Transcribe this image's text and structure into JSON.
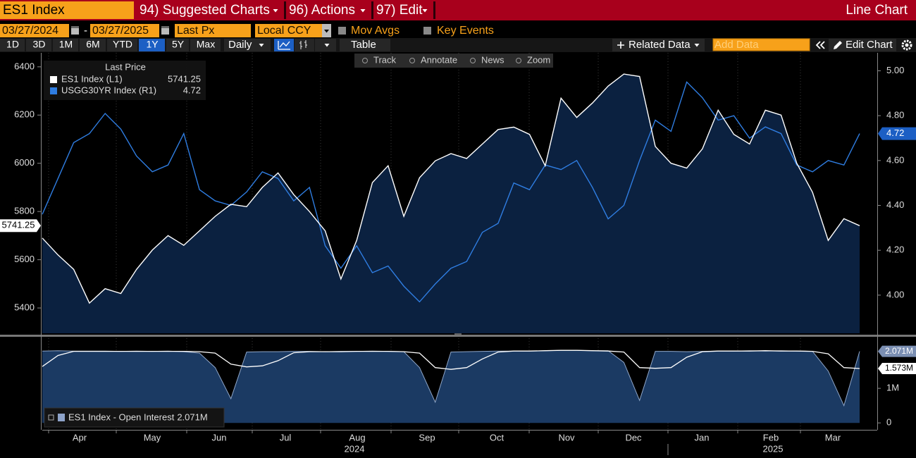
{
  "header": {
    "ticker": "ES1 Index",
    "menus": [
      "94) Suggested Charts",
      "96) Actions",
      "97) Edit"
    ],
    "view": "Line Chart"
  },
  "settings": {
    "start_date": "03/27/2024",
    "date_separator": "-",
    "end_date": "03/27/2025",
    "field": "Last Px",
    "currency": "Local CCY",
    "options": [
      "Mov Avgs",
      "Key Events"
    ]
  },
  "toolbar": {
    "periods": [
      {
        "label": "1D"
      },
      {
        "label": "3D"
      },
      {
        "label": "1M"
      },
      {
        "label": "6M"
      },
      {
        "label": "YTD"
      },
      {
        "label": "1Y",
        "active": true
      },
      {
        "label": "5Y"
      },
      {
        "label": "Max"
      }
    ],
    "frequency": "Daily",
    "table": "Table",
    "related": "Related Data",
    "add_placeholder": "Add Data",
    "edit": "Edit Chart"
  },
  "chart_tools": [
    "Track",
    "Annotate",
    "News",
    "Zoom"
  ],
  "chart_data": [
    {
      "type": "line",
      "legend_title": "Last Price",
      "series": [
        {
          "name": "ES1 Index  (L1)",
          "color": "#ffffff",
          "fill": "#0b2140",
          "axis": "y",
          "values": [
            5690,
            5620,
            5560,
            5420,
            5480,
            5460,
            5560,
            5640,
            5700,
            5660,
            5720,
            5780,
            5830,
            5820,
            5900,
            5960,
            5870,
            5800,
            5720,
            5520,
            5680,
            5920,
            5990,
            5780,
            5940,
            6010,
            6040,
            6020,
            6080,
            6140,
            6150,
            6120,
            5990,
            6270,
            6190,
            6250,
            6320,
            6370,
            6360,
            6070,
            6000,
            5980,
            6060,
            6220,
            6120,
            6080,
            6220,
            6200,
            6000,
            5880,
            5680,
            5770,
            5741.25
          ]
        },
        {
          "name": "USGG30YR Index  (R1)",
          "color": "#2f7de1",
          "axis": "y2",
          "values": [
            4.36,
            4.52,
            4.68,
            4.72,
            4.81,
            4.74,
            4.62,
            4.55,
            4.58,
            4.72,
            4.47,
            4.42,
            4.4,
            4.46,
            4.55,
            4.52,
            4.42,
            4.48,
            4.22,
            4.12,
            4.22,
            4.1,
            4.13,
            4.04,
            3.97,
            4.05,
            4.12,
            4.15,
            4.28,
            4.32,
            4.5,
            4.47,
            4.58,
            4.56,
            4.6,
            4.48,
            4.34,
            4.4,
            4.6,
            4.78,
            4.73,
            4.95,
            4.88,
            4.78,
            4.8,
            4.7,
            4.75,
            4.72,
            4.58,
            4.55,
            4.6,
            4.58,
            4.72
          ]
        }
      ],
      "ylim": [
        5295,
        6458
      ],
      "yticks": [
        5400,
        5600,
        5800,
        6000,
        6200,
        6400
      ],
      "y2lim": [
        3.83,
        5.08
      ],
      "y2ticks": [
        {
          "value": 4.0,
          "label": "4.00"
        },
        {
          "value": 4.2,
          "label": "4.20"
        },
        {
          "value": 4.4,
          "label": "4.40"
        },
        {
          "value": 4.6,
          "label": "4.60"
        },
        {
          "value": 4.8,
          "label": "4.80"
        },
        {
          "value": 5.0,
          "label": "5.00"
        }
      ],
      "grid": true
    },
    {
      "type": "area",
      "series": [
        {
          "name": "ES1 Index - Open Interest",
          "color": "#1b3a63",
          "last_value_label": "2.071M",
          "values": [
            2.08,
            2.09,
            2.08,
            2.08,
            2.08,
            2.07,
            2.08,
            2.07,
            2.08,
            2.06,
            2.02,
            1.6,
            0.7,
            2.05,
            2.06,
            2.06,
            2.07,
            2.07,
            2.06,
            2.07,
            2.07,
            2.08,
            2.07,
            2.06,
            1.6,
            0.6,
            2.05,
            2.06,
            2.07,
            2.08,
            2.08,
            2.08,
            2.09,
            2.1,
            2.1,
            2.09,
            2.09,
            1.75,
            0.65,
            2.07,
            2.07,
            2.06,
            2.07,
            2.08,
            2.08,
            2.09,
            2.08,
            2.09,
            2.08,
            2.07,
            1.5,
            0.5,
            2.071
          ]
        },
        {
          "color": "#ffffff",
          "last_value_label": "1.573M",
          "values": [
            1.63,
            1.95,
            2.07,
            2.07,
            2.07,
            2.07,
            2.07,
            2.07,
            2.07,
            2.07,
            2.06,
            2.02,
            1.7,
            1.62,
            1.65,
            1.8,
            2.03,
            2.06,
            2.06,
            2.06,
            2.07,
            2.07,
            2.07,
            2.06,
            2.02,
            1.6,
            1.55,
            1.6,
            1.85,
            2.05,
            2.08,
            2.08,
            2.09,
            2.1,
            2.1,
            2.09,
            2.08,
            2.05,
            1.6,
            1.58,
            1.6,
            1.9,
            2.06,
            2.08,
            2.08,
            2.08,
            2.09,
            2.08,
            2.08,
            2.07,
            2.0,
            1.6,
            1.573
          ]
        }
      ],
      "ylim": [
        -0.2,
        2.45
      ],
      "yticks": [
        0,
        {
          "value": 1,
          "label": "1M"
        }
      ],
      "grid": true
    }
  ],
  "x_axis": {
    "months": [
      "Apr",
      "May",
      "Jun",
      "Jul",
      "Aug",
      "Sep",
      "Oct",
      "Nov",
      "Dec",
      "Jan",
      "Feb",
      "Mar"
    ],
    "years": [
      "2024",
      "2025"
    ]
  }
}
